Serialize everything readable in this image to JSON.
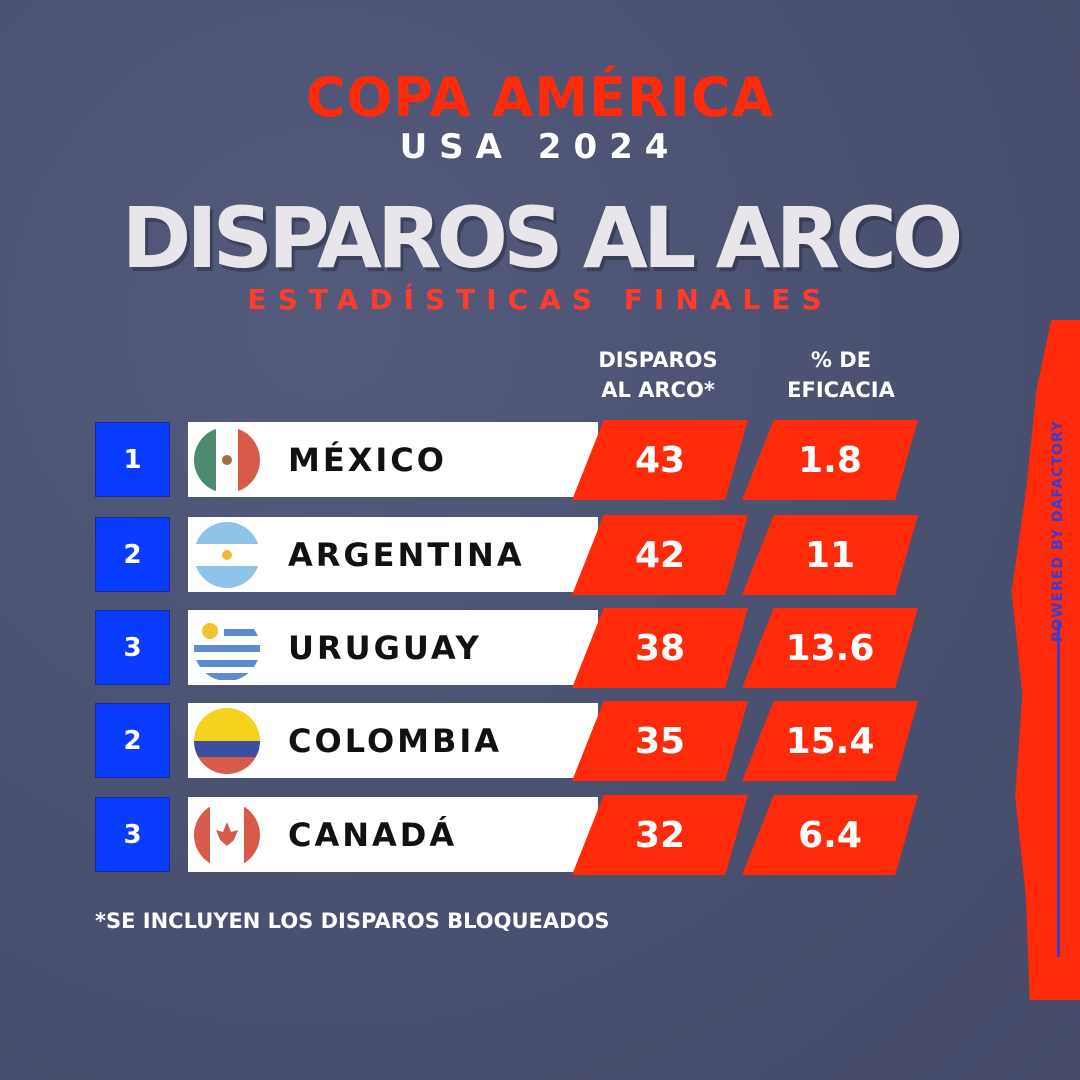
{
  "header": {
    "title": "COPA AMÉRICA",
    "subtitle": "USA 2024",
    "main_title": "DISPAROS AL ARCO",
    "tagline": "ESTADÍSTICAS FINALES"
  },
  "columns": {
    "shots_line1": "DISPAROS",
    "shots_line2": "AL ARCO*",
    "eff_line1": "% DE",
    "eff_line2": "EFICACIA"
  },
  "rows": [
    {
      "rank": "1",
      "country": "MÉXICO",
      "shots": "43",
      "efficacy": "1.8",
      "flag": "mexico"
    },
    {
      "rank": "2",
      "country": "ARGENTINA",
      "shots": "42",
      "efficacy": "11",
      "flag": "argentina"
    },
    {
      "rank": "3",
      "country": "URUGUAY",
      "shots": "38",
      "efficacy": "13.6",
      "flag": "uruguay"
    },
    {
      "rank": "2",
      "country": "COLOMBIA",
      "shots": "35",
      "efficacy": "15.4",
      "flag": "colombia"
    },
    {
      "rank": "3",
      "country": "CANADÁ",
      "shots": "32",
      "efficacy": "6.4",
      "flag": "canada"
    }
  ],
  "footnote": "*SE INCLUYEN LOS DISPAROS BLOQUEADOS",
  "credit": "POWERED BY DAFACTORY",
  "colors": {
    "background": "#4a5070",
    "accent_red": "#ff2a0a",
    "rank_blue": "#0a3cff"
  }
}
